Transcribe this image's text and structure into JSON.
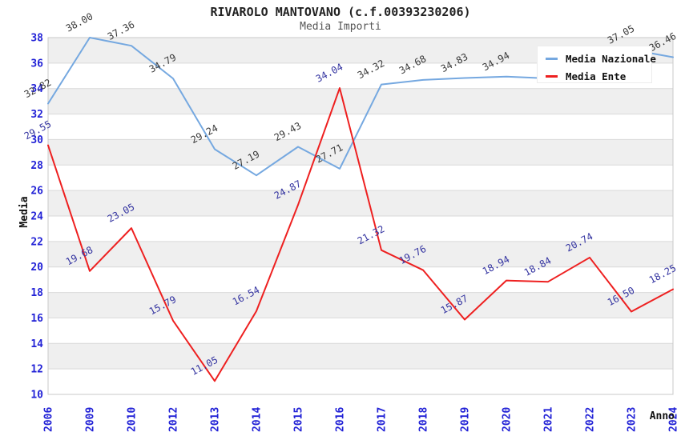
{
  "page": {
    "title": "RIVAROLO MANTOVANO (c.f.00393230206)",
    "subtitle": "Media Importi"
  },
  "chart_data": {
    "type": "line",
    "title": "RIVAROLO MANTOVANO (c.f.00393230206)",
    "subtitle": "Media Importi",
    "x_axis_label": "Anno",
    "y_axis_label": "Media",
    "ylim": [
      10,
      38
    ],
    "y_tick_step": 2,
    "y_tick_labels": [
      "10",
      "12",
      "14",
      "16",
      "18",
      "20",
      "22",
      "24",
      "26",
      "28",
      "30",
      "32",
      "34",
      "36",
      "38"
    ],
    "grid": "horizontal alternating gray bands every 2 units",
    "legend_position": "top-right",
    "categories": [
      "2006",
      "2009",
      "2010",
      "2012",
      "2013",
      "2014",
      "2015",
      "2016",
      "2017",
      "2018",
      "2019",
      "2020",
      "2021",
      "2022",
      "2023",
      "2024"
    ],
    "series": [
      {
        "name": "Media Nazionale",
        "color": "#75a8e0",
        "label_color": "#3a3a3a",
        "values": [
          32.82,
          38.0,
          37.36,
          34.79,
          29.24,
          27.19,
          29.43,
          27.71,
          34.32,
          34.68,
          34.83,
          34.94,
          34.8,
          36.0,
          37.05,
          36.46
        ],
        "labels": [
          "32.82",
          "38.00",
          "37.36",
          "34.79",
          "29.24",
          "27.19",
          "29.43",
          "27.71",
          "34.32",
          "34.68",
          "34.83",
          "34.94",
          null,
          null,
          "37.05",
          "36.46"
        ]
      },
      {
        "name": "Media Ente",
        "color": "#ee2020",
        "label_color": "#3333a0",
        "values": [
          29.55,
          19.68,
          23.05,
          15.79,
          11.05,
          16.54,
          24.87,
          34.04,
          21.32,
          19.76,
          15.87,
          18.94,
          18.84,
          20.74,
          16.5,
          18.25
        ],
        "labels": [
          "29.55",
          "19.68",
          "23.05",
          "15.79",
          "11.05",
          "16.54",
          "24.87",
          "34.04",
          "21.32",
          "19.76",
          "15.87",
          "18.94",
          "18.84",
          "20.74",
          "16.50",
          "18.25"
        ]
      }
    ],
    "colors": {
      "tick_text": "#2222d6",
      "axis_title_text": "#111111",
      "stripe": "#efefef",
      "gridline": "#d9d9d9",
      "plot_border": "#c9c9c9"
    }
  }
}
